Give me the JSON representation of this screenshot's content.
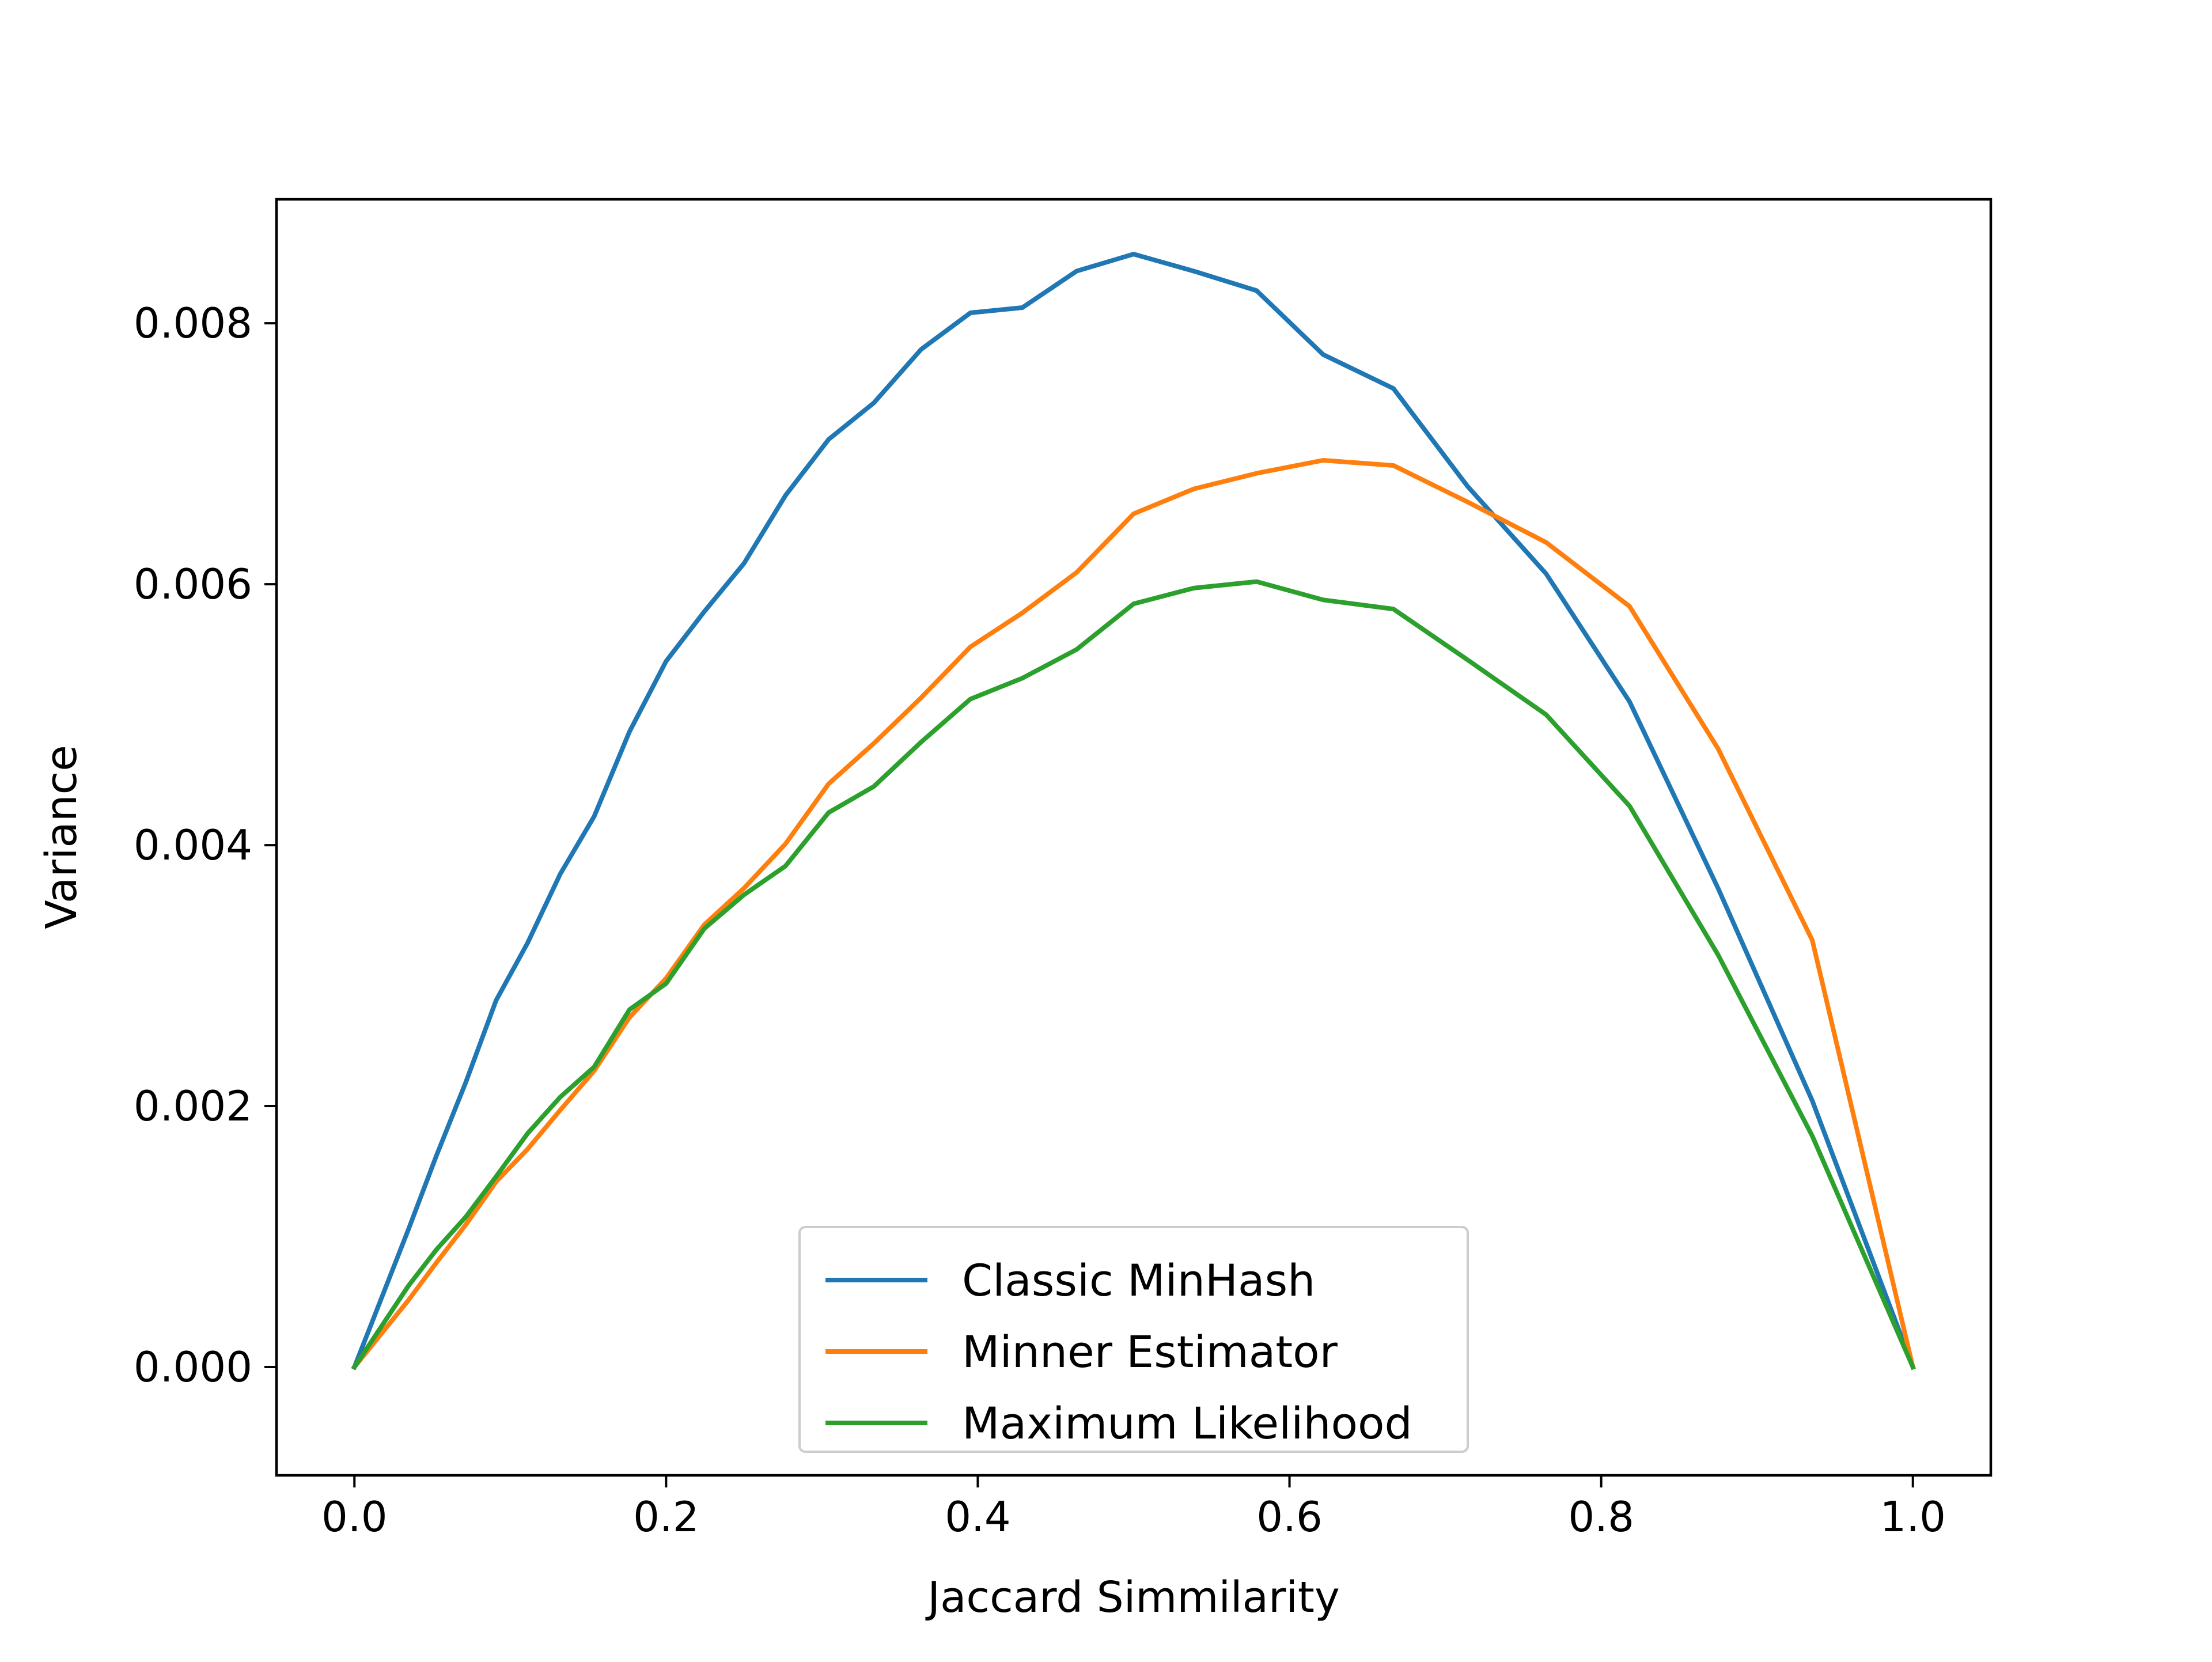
{
  "chart_data": {
    "type": "line",
    "xlabel": "Jaccard Simmilarity",
    "ylabel": "Variance",
    "xlim": [
      -0.05,
      1.05
    ],
    "ylim": [
      -0.00083,
      0.00895
    ],
    "x_ticks": [
      0.0,
      0.2,
      0.4,
      0.6,
      0.8,
      1.0
    ],
    "x_tick_labels": [
      "0.0",
      "0.2",
      "0.4",
      "0.6",
      "0.8",
      "1.0"
    ],
    "y_ticks": [
      0.0,
      0.002,
      0.004,
      0.006,
      0.008
    ],
    "y_tick_labels": [
      "0.000",
      "0.002",
      "0.004",
      "0.006",
      "0.008"
    ],
    "grid": false,
    "legend_position": "lower-center",
    "series": [
      {
        "name": "Classic MinHash",
        "color": "#1f77b4",
        "x": [
          0.0,
          0.0345,
          0.0526,
          0.0714,
          0.0909,
          0.1111,
          0.1321,
          0.1538,
          0.1765,
          0.2,
          0.2245,
          0.25,
          0.2766,
          0.3043,
          0.3333,
          0.3636,
          0.3953,
          0.4286,
          0.4634,
          0.5,
          0.5385,
          0.5789,
          0.6216,
          0.6667,
          0.7143,
          0.7647,
          0.8182,
          0.875,
          0.9355,
          1.0
        ],
        "y": [
          0.0,
          0.00105,
          0.00162,
          0.00218,
          0.00281,
          0.00325,
          0.00378,
          0.00422,
          0.00487,
          0.00541,
          0.00579,
          0.00616,
          0.00668,
          0.00711,
          0.00739,
          0.0078,
          0.00808,
          0.00812,
          0.0084,
          0.00853,
          0.0084,
          0.00825,
          0.00776,
          0.0075,
          0.00675,
          0.00608,
          0.0051,
          0.00367,
          0.00204,
          0.0
        ]
      },
      {
        "name": "Minner Estimator",
        "color": "#ff7f0e",
        "x": [
          0.0,
          0.0345,
          0.0526,
          0.0714,
          0.0909,
          0.1111,
          0.1321,
          0.1538,
          0.1765,
          0.2,
          0.2245,
          0.25,
          0.2766,
          0.3043,
          0.3333,
          0.3636,
          0.3953,
          0.4286,
          0.4634,
          0.5,
          0.5385,
          0.5789,
          0.6216,
          0.6667,
          0.7143,
          0.7647,
          0.8182,
          0.875,
          0.9355,
          1.0
        ],
        "y": [
          0.0,
          0.00051,
          0.0008,
          0.00109,
          0.00142,
          0.00167,
          0.00197,
          0.00227,
          0.00268,
          0.00298,
          0.00339,
          0.00367,
          0.00401,
          0.00447,
          0.00478,
          0.00513,
          0.00552,
          0.00578,
          0.00609,
          0.00654,
          0.00673,
          0.00685,
          0.00695,
          0.00691,
          0.00663,
          0.00632,
          0.00583,
          0.00474,
          0.00327,
          0.0
        ]
      },
      {
        "name": "Maximum Likelihood",
        "color": "#2ca02c",
        "x": [
          0.0,
          0.0345,
          0.0526,
          0.0714,
          0.0909,
          0.1111,
          0.1321,
          0.1538,
          0.1765,
          0.2,
          0.2245,
          0.25,
          0.2766,
          0.3043,
          0.3333,
          0.3636,
          0.3953,
          0.4286,
          0.4634,
          0.5,
          0.5385,
          0.5789,
          0.6216,
          0.6667,
          0.7143,
          0.7647,
          0.8182,
          0.875,
          0.9355,
          1.0
        ],
        "y": [
          0.0,
          0.00062,
          0.0009,
          0.00115,
          0.00146,
          0.00179,
          0.00207,
          0.0023,
          0.00274,
          0.00294,
          0.00336,
          0.00362,
          0.00384,
          0.00425,
          0.00445,
          0.00479,
          0.00512,
          0.00528,
          0.0055,
          0.00585,
          0.00597,
          0.00602,
          0.00588,
          0.00581,
          0.00542,
          0.005,
          0.0043,
          0.00316,
          0.00177,
          0.0
        ]
      }
    ]
  }
}
